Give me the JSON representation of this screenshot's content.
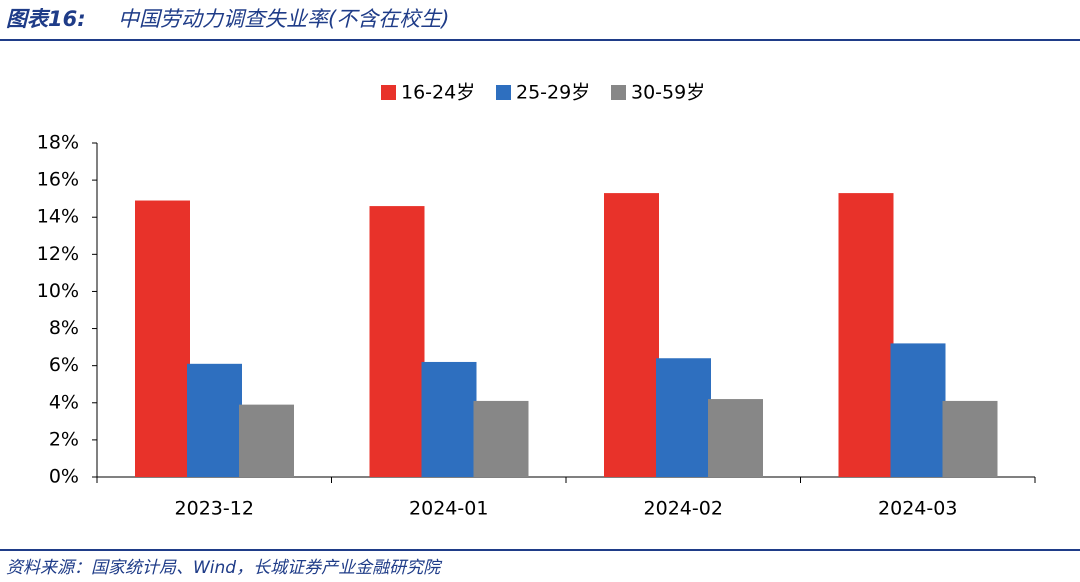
{
  "chart_data": {
    "type": "bar",
    "figure_label": "图表16:",
    "title": "中国劳动力调查失业率(不含在校生)",
    "source": "资料来源：国家统计局、Wind，长城证券产业金融研究院",
    "categories": [
      "2023-12",
      "2024-01",
      "2024-02",
      "2024-03"
    ],
    "series": [
      {
        "name": "16-24岁",
        "color": "#e8322a",
        "values": [
          14.9,
          14.6,
          15.3,
          15.3
        ]
      },
      {
        "name": "25-29岁",
        "color": "#2e6fbf",
        "values": [
          6.1,
          6.2,
          6.4,
          7.2
        ]
      },
      {
        "name": "30-59岁",
        "color": "#878787",
        "values": [
          3.9,
          4.1,
          4.2,
          4.1
        ]
      }
    ],
    "ylim": [
      0,
      18
    ],
    "yticks": [
      {
        "value": 0,
        "label": "0%"
      },
      {
        "value": 2,
        "label": "2%"
      },
      {
        "value": 4,
        "label": "4%"
      },
      {
        "value": 6,
        "label": "6%"
      },
      {
        "value": 8,
        "label": "8%"
      },
      {
        "value": 10,
        "label": "10%"
      },
      {
        "value": 12,
        "label": "12%"
      },
      {
        "value": 14,
        "label": "14%"
      },
      {
        "value": 16,
        "label": "16%"
      },
      {
        "value": 18,
        "label": "18%"
      }
    ],
    "grid": false,
    "legend": "top"
  }
}
